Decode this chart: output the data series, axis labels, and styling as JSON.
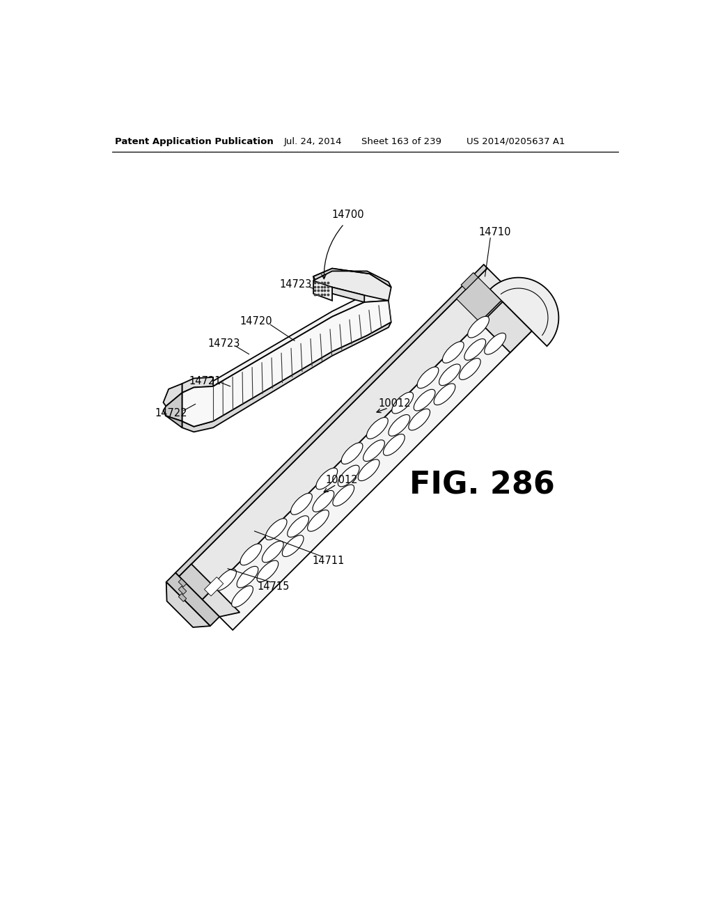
{
  "bg_color": "#ffffff",
  "header_left": "Patent Application Publication",
  "header_center": "Jul. 24, 2014",
  "header_sheet": "Sheet 163 of 239",
  "header_patent": "US 2014/0205637 A1",
  "fig_label": "FIG. 286",
  "line_color": "#000000",
  "lw_main": 1.3,
  "lw_thin": 0.8,
  "lw_leader": 0.8,
  "fill_top": "#f5f5f5",
  "fill_side": "#e0e0e0",
  "fill_dark": "#c8c8c8",
  "fill_bottom": "#d8d8d8"
}
